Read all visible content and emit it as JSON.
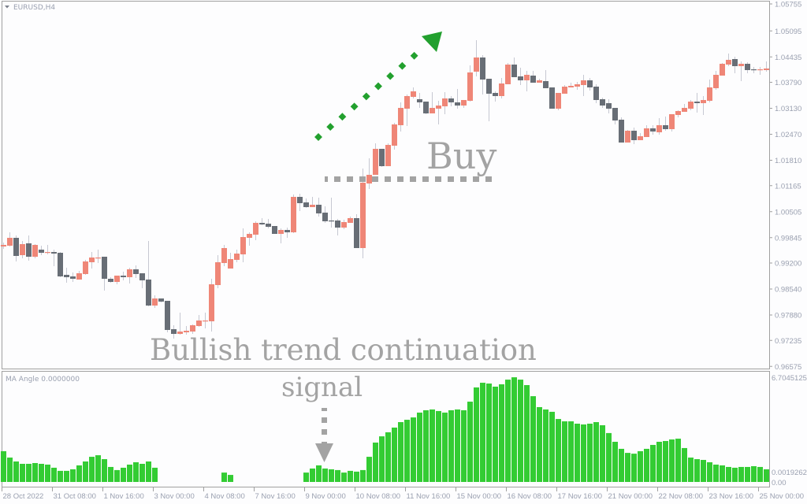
{
  "window": {
    "symbol_label": "EURUSD,H4",
    "indicator_label": "MA Angle 0.0000000"
  },
  "colors": {
    "bull": "#ef8677",
    "bear": "#686e76",
    "wick": "#c6c8d2",
    "histogram": "#33cc33",
    "arrow_up": "#22a02e",
    "annotation": "#a3a3a3",
    "frame": "#a0a0a0"
  },
  "annotations": {
    "buy": "Buy",
    "headline": "Bullish trend continuation",
    "signal": "signal"
  },
  "chart_data": [
    {
      "type": "candlestick",
      "title": "EURUSD,H4",
      "price_axis": {
        "labels": [
          "1.05755",
          "1.05095",
          "1.04435",
          "1.03790",
          "1.03130",
          "1.02470",
          "1.01810",
          "1.01165",
          "1.00505",
          "0.99845",
          "0.99200",
          "0.98540",
          "0.97880",
          "0.97235",
          "0.96575"
        ],
        "range": [
          0.96575,
          1.05775
        ]
      },
      "time_axis": {
        "labels": [
          "28 Oct 2022",
          "31 Oct 08:00",
          "1 Nov 16:00",
          "3 Nov 00:00",
          "4 Nov 08:00",
          "7 Nov 16:00",
          "9 Nov 00:00",
          "10 Nov 08:00",
          "11 Nov 16:00",
          "15 Nov 00:00",
          "16 Nov 08:00",
          "17 Nov 16:00",
          "21 Nov 00:00",
          "22 Nov 08:00",
          "23 Nov 16:00",
          "25 Nov 00:00"
        ],
        "bars_per_label": 8
      },
      "ohlc": [
        [
          0.9962,
          0.9972,
          0.9956,
          0.9966
        ],
        [
          0.9964,
          0.9998,
          0.9962,
          0.9984
        ],
        [
          0.9984,
          0.999,
          0.9924,
          0.9938
        ],
        [
          0.994,
          0.9976,
          0.9932,
          0.9968
        ],
        [
          0.997,
          0.999,
          0.9926,
          0.9936
        ],
        [
          0.9936,
          0.9968,
          0.9932,
          0.9966
        ],
        [
          0.9954,
          0.9964,
          0.994,
          0.9946
        ],
        [
          0.9946,
          0.9966,
          0.9942,
          0.9948
        ],
        [
          0.9948,
          0.9954,
          0.9912,
          0.9944
        ],
        [
          0.9946,
          0.9948,
          0.9884,
          0.9886
        ],
        [
          0.989,
          0.9908,
          0.987,
          0.9884
        ],
        [
          0.9886,
          0.9896,
          0.9872,
          0.988
        ],
        [
          0.9878,
          0.99,
          0.9878,
          0.9894
        ],
        [
          0.9892,
          0.9928,
          0.989,
          0.9924
        ],
        [
          0.9922,
          0.9948,
          0.9906,
          0.9934
        ],
        [
          0.9932,
          0.9954,
          0.992,
          0.9934
        ],
        [
          0.9936,
          0.9936,
          0.985,
          0.988
        ],
        [
          0.988,
          0.9884,
          0.987,
          0.9872
        ],
        [
          0.9872,
          0.9888,
          0.9866,
          0.9888
        ],
        [
          0.9888,
          0.9898,
          0.9876,
          0.9884
        ],
        [
          0.9884,
          0.9908,
          0.9868,
          0.9904
        ],
        [
          0.9904,
          0.9914,
          0.9882,
          0.9892
        ],
        [
          0.9894,
          0.9894,
          0.9856,
          0.9876
        ],
        [
          0.9878,
          0.9976,
          0.981,
          0.9812
        ],
        [
          0.9812,
          0.9838,
          0.9806,
          0.983
        ],
        [
          0.983,
          0.983,
          0.982,
          0.9822
        ],
        [
          0.9824,
          0.9824,
          0.9744,
          0.975
        ],
        [
          0.9752,
          0.9762,
          0.9728,
          0.974
        ],
        [
          0.974,
          0.9794,
          0.9738,
          0.9746
        ],
        [
          0.9744,
          0.976,
          0.9738,
          0.9748
        ],
        [
          0.9746,
          0.9764,
          0.974,
          0.9762
        ],
        [
          0.976,
          0.9788,
          0.9758,
          0.9774
        ],
        [
          0.9772,
          0.9794,
          0.9754,
          0.9774
        ],
        [
          0.9772,
          0.988,
          0.9746,
          0.9866
        ],
        [
          0.9864,
          0.994,
          0.9856,
          0.9922
        ],
        [
          0.992,
          0.9966,
          0.9912,
          0.9958
        ],
        [
          0.9906,
          0.9946,
          0.9906,
          0.993
        ],
        [
          0.9928,
          0.9954,
          0.9922,
          0.9944
        ],
        [
          0.9942,
          1.0008,
          0.9922,
          0.9986
        ],
        [
          0.9984,
          0.9998,
          0.9964,
          0.9994
        ],
        [
          0.9992,
          1.0026,
          0.9978,
          1.0022
        ],
        [
          1.0022,
          1.0034,
          1.0016,
          1.0018
        ],
        [
          1.002,
          1.0032,
          1.0008,
          1.0012
        ],
        [
          1.0014,
          1.0014,
          0.9994,
          0.9994
        ],
        [
          0.9994,
          1.0008,
          0.997,
          1.0004
        ],
        [
          1.0004,
          1.001,
          0.9984,
          0.9998
        ],
        [
          0.9998,
          1.0094,
          0.9996,
          1.0088
        ],
        [
          1.0088,
          1.0096,
          1.0052,
          1.0072
        ],
        [
          1.0074,
          1.0084,
          1.006,
          1.0062
        ],
        [
          1.0062,
          1.0088,
          1.0062,
          1.0068
        ],
        [
          1.0068,
          1.0086,
          1.0038,
          1.0046
        ],
        [
          1.0048,
          1.0064,
          1.0022,
          1.0026
        ],
        [
          1.0028,
          1.0086,
          1.001,
          1.0026
        ],
        [
          1.0028,
          1.0032,
          0.999,
          1.001
        ],
        [
          1.001,
          1.003,
          1.0006,
          1.0024
        ],
        [
          1.0022,
          1.0038,
          1.0022,
          1.0034
        ],
        [
          1.0034,
          1.0044,
          0.9958,
          0.9958
        ],
        [
          0.9958,
          1.016,
          0.9932,
          1.0124
        ],
        [
          1.0122,
          1.0186,
          1.0108,
          1.0144
        ],
        [
          1.0144,
          1.0224,
          1.0144,
          1.021
        ],
        [
          1.021,
          1.021,
          1.0164,
          1.0166
        ],
        [
          1.0166,
          1.0224,
          1.0166,
          1.022
        ],
        [
          1.0218,
          1.0276,
          1.0208,
          1.0272
        ],
        [
          1.027,
          1.0328,
          1.0254,
          1.0314
        ],
        [
          1.0312,
          1.0348,
          1.0268,
          1.0344
        ],
        [
          1.0342,
          1.0366,
          1.0338,
          1.0356
        ],
        [
          1.0336,
          1.0352,
          1.0314,
          1.0328
        ],
        [
          1.033,
          1.033,
          1.0298,
          1.03
        ],
        [
          1.03,
          1.0354,
          1.03,
          1.0314
        ],
        [
          1.0312,
          1.0332,
          1.0272,
          1.032
        ],
        [
          1.0318,
          1.0354,
          1.0298,
          1.0338
        ],
        [
          1.0338,
          1.0344,
          1.0318,
          1.0328
        ],
        [
          1.0328,
          1.0362,
          1.0312,
          1.032
        ],
        [
          1.032,
          1.0334,
          1.0314,
          1.0334
        ],
        [
          1.0332,
          1.0422,
          1.033,
          1.0404
        ],
        [
          1.0406,
          1.0486,
          1.0394,
          1.0442
        ],
        [
          1.0442,
          1.0448,
          1.0348,
          1.0386
        ],
        [
          1.0388,
          1.0388,
          1.028,
          1.035
        ],
        [
          1.0352,
          1.0356,
          1.033,
          1.0344
        ],
        [
          1.0344,
          1.039,
          1.0338,
          1.0376
        ],
        [
          1.0374,
          1.0428,
          1.0374,
          1.0424
        ],
        [
          1.0424,
          1.0442,
          1.0392,
          1.0392
        ],
        [
          1.0394,
          1.0416,
          1.0372,
          1.0384
        ],
        [
          1.0384,
          1.0408,
          1.0356,
          1.0398
        ],
        [
          1.0396,
          1.0408,
          1.0378,
          1.0378
        ],
        [
          1.0378,
          1.0388,
          1.0378,
          1.0384
        ],
        [
          1.0382,
          1.041,
          1.0364,
          1.0364
        ],
        [
          1.0366,
          1.0366,
          1.0312,
          1.0312
        ],
        [
          1.0312,
          1.0352,
          1.0308,
          1.0352
        ],
        [
          1.035,
          1.0372,
          1.035,
          1.0368
        ],
        [
          1.0366,
          1.0378,
          1.0366,
          1.037
        ],
        [
          1.0368,
          1.038,
          1.036,
          1.0374
        ],
        [
          1.0372,
          1.0398,
          1.0344,
          1.0384
        ],
        [
          1.0384,
          1.039,
          1.0358,
          1.0366
        ],
        [
          1.0368,
          1.0374,
          1.0326,
          1.0334
        ],
        [
          1.0336,
          1.034,
          1.0314,
          1.032
        ],
        [
          1.0326,
          1.0336,
          1.03,
          1.0312
        ],
        [
          1.0314,
          1.0314,
          1.0272,
          1.0282
        ],
        [
          1.0284,
          1.029,
          1.0226,
          1.0226
        ],
        [
          1.0226,
          1.0258,
          1.0226,
          1.0256
        ],
        [
          1.0256,
          1.0264,
          1.0222,
          1.0232
        ],
        [
          1.0232,
          1.025,
          1.0232,
          1.0242
        ],
        [
          1.024,
          1.027,
          1.024,
          1.0262
        ],
        [
          1.0262,
          1.027,
          1.0246,
          1.0254
        ],
        [
          1.0252,
          1.0288,
          1.0246,
          1.027
        ],
        [
          1.027,
          1.0292,
          1.0256,
          1.026
        ],
        [
          1.026,
          1.0298,
          1.0254,
          1.0298
        ],
        [
          1.0296,
          1.0308,
          1.029,
          1.0306
        ],
        [
          1.0304,
          1.0324,
          1.0304,
          1.0314
        ],
        [
          1.0312,
          1.0334,
          1.0308,
          1.033
        ],
        [
          1.033,
          1.0352,
          1.0302,
          1.0326
        ],
        [
          1.0326,
          1.0344,
          1.0296,
          1.0334
        ],
        [
          1.0332,
          1.0386,
          1.0328,
          1.0366
        ],
        [
          1.0364,
          1.0408,
          1.036,
          1.0398
        ],
        [
          1.0396,
          1.0428,
          1.0396,
          1.0426
        ],
        [
          1.0424,
          1.0452,
          1.042,
          1.0436
        ],
        [
          1.0438,
          1.0444,
          1.0402,
          1.042
        ],
        [
          1.042,
          1.0432,
          1.0382,
          1.0426
        ],
        [
          1.0426,
          1.043,
          1.0402,
          1.041
        ],
        [
          1.0412,
          1.0418,
          1.0402,
          1.041
        ],
        [
          1.041,
          1.0418,
          1.0398,
          1.0412
        ],
        [
          1.041,
          1.0432,
          1.0406,
          1.0414
        ]
      ]
    },
    {
      "type": "bar",
      "title": "MA Angle 0.0000000",
      "y_axis": {
        "max_label": "6.7045125",
        "min_labels": [
          "0.00",
          "0.0019262"
        ],
        "range": [
          0,
          6.7045125
        ]
      },
      "values": [
        1.97,
        1.56,
        1.31,
        1.16,
        1.16,
        1.21,
        1.16,
        1.11,
        0.91,
        0.71,
        0.71,
        0.81,
        1.06,
        1.31,
        1.61,
        1.71,
        1.46,
        0.96,
        0.76,
        0.91,
        1.11,
        1.26,
        1.16,
        1.31,
        0.91,
        0,
        0,
        0,
        0,
        0,
        0,
        0,
        0,
        0,
        0,
        0.6,
        0.45,
        0,
        0,
        0,
        0,
        0,
        0,
        0,
        0,
        0,
        0,
        0,
        0.6,
        0.86,
        1.06,
        0.86,
        0.81,
        0.76,
        0.6,
        0.71,
        0.66,
        0.76,
        1.61,
        2.52,
        2.92,
        3.18,
        3.48,
        3.83,
        3.98,
        4.13,
        4.44,
        4.59,
        4.64,
        4.54,
        4.44,
        4.59,
        4.64,
        4.59,
        5.14,
        6.05,
        6.35,
        6.3,
        6.1,
        6.25,
        6.55,
        6.7,
        6.55,
        6.2,
        5.49,
        4.79,
        4.64,
        4.49,
        4.03,
        3.88,
        3.88,
        3.73,
        3.68,
        3.73,
        3.83,
        3.63,
        3.13,
        2.57,
        2.12,
        1.86,
        1.81,
        1.97,
        2.12,
        2.37,
        2.57,
        2.62,
        2.72,
        2.77,
        2.17,
        1.56,
        1.46,
        1.41,
        1.26,
        1.11,
        1.06,
        0.96,
        0.91,
        0.96,
        0.96,
        1.01,
        0.96,
        0.81
      ]
    }
  ]
}
